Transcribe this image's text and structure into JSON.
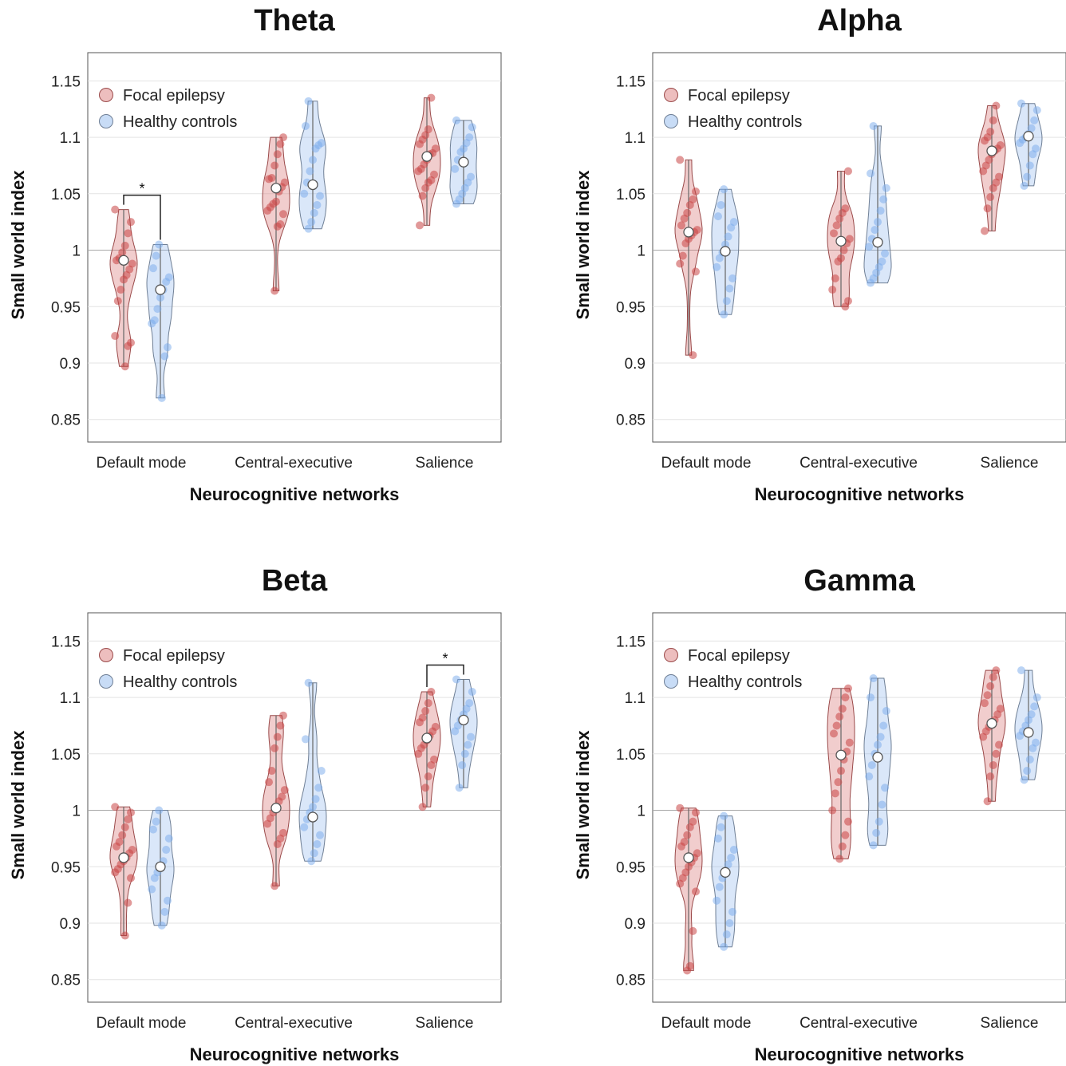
{
  "chart_data": [
    {
      "type": "violin",
      "title": "Theta",
      "xlabel": "Neurocognitive networks",
      "ylabel": "Small world index",
      "ylim": [
        0.83,
        1.175
      ],
      "yticks": [
        "1.15",
        "1.1",
        "1.05",
        "1",
        "0.95",
        "0.9",
        "0.85"
      ],
      "categories": [
        "Default mode",
        "Central-executive",
        "Salience"
      ],
      "legend": {
        "placement": "top-left",
        "entries": [
          "Focal epilepsy",
          "Healthy controls"
        ]
      },
      "series": [
        {
          "name": "Focal epilepsy",
          "color": "#d26a6a",
          "groups": [
            {
              "min": 0.897,
              "max": 1.036,
              "median": 0.991,
              "points": [
                1.036,
                1.025,
                1.015,
                1.004,
                0.998,
                0.993,
                0.991,
                0.988,
                0.983,
                0.978,
                0.974,
                0.965,
                0.955,
                0.924,
                0.918,
                0.915,
                0.897
              ]
            },
            {
              "min": 0.964,
              "max": 1.1,
              "median": 1.055,
              "points": [
                1.1,
                1.094,
                1.085,
                1.075,
                1.064,
                1.063,
                1.06,
                1.056,
                1.052,
                1.043,
                1.041,
                1.038,
                1.035,
                1.032,
                1.023,
                1.021,
                0.964
              ]
            },
            {
              "min": 1.022,
              "max": 1.135,
              "median": 1.083,
              "points": [
                1.135,
                1.107,
                1.102,
                1.098,
                1.094,
                1.09,
                1.086,
                1.085,
                1.08,
                1.076,
                1.072,
                1.07,
                1.067,
                1.062,
                1.06,
                1.055,
                1.048,
                1.022
              ]
            }
          ]
        },
        {
          "name": "Healthy controls",
          "color": "#7fb0ec",
          "groups": [
            {
              "min": 0.869,
              "max": 1.005,
              "median": 0.965,
              "points": [
                1.005,
                0.995,
                0.984,
                0.976,
                0.972,
                0.965,
                0.958,
                0.948,
                0.938,
                0.935,
                0.914,
                0.906,
                0.869
              ]
            },
            {
              "min": 1.019,
              "max": 1.132,
              "median": 1.058,
              "points": [
                1.132,
                1.11,
                1.095,
                1.093,
                1.09,
                1.08,
                1.07,
                1.06,
                1.05,
                1.048,
                1.04,
                1.033,
                1.025,
                1.019
              ]
            },
            {
              "min": 1.041,
              "max": 1.115,
              "median": 1.078,
              "points": [
                1.115,
                1.109,
                1.1,
                1.095,
                1.09,
                1.087,
                1.08,
                1.072,
                1.065,
                1.06,
                1.055,
                1.05,
                1.045,
                1.041
              ]
            }
          ]
        }
      ],
      "significance": [
        {
          "category": "Default mode",
          "label": "*"
        }
      ]
    },
    {
      "type": "violin",
      "title": "Alpha",
      "xlabel": "Neurocognitive networks",
      "ylabel": "Small world index",
      "ylim": [
        0.83,
        1.175
      ],
      "yticks": [
        "1.15",
        "1.1",
        "1.05",
        "1",
        "0.95",
        "0.9",
        "0.85"
      ],
      "categories": [
        "Default mode",
        "Central-executive",
        "Salience"
      ],
      "legend": {
        "placement": "top-left",
        "entries": [
          "Focal epilepsy",
          "Healthy controls"
        ]
      },
      "series": [
        {
          "name": "Focal epilepsy",
          "color": "#d26a6a",
          "groups": [
            {
              "min": 0.907,
              "max": 1.08,
              "median": 1.016,
              "points": [
                1.08,
                1.052,
                1.045,
                1.04,
                1.033,
                1.028,
                1.022,
                1.018,
                1.016,
                1.013,
                1.01,
                1.006,
                0.995,
                0.988,
                0.981,
                0.907
              ]
            },
            {
              "min": 0.95,
              "max": 1.07,
              "median": 1.008,
              "points": [
                1.07,
                1.037,
                1.033,
                1.028,
                1.022,
                1.015,
                1.01,
                1.006,
                1.0,
                0.993,
                0.99,
                0.975,
                0.965,
                0.955,
                0.95
              ]
            },
            {
              "min": 1.017,
              "max": 1.128,
              "median": 1.088,
              "points": [
                1.128,
                1.115,
                1.105,
                1.1,
                1.097,
                1.093,
                1.09,
                1.088,
                1.085,
                1.08,
                1.075,
                1.07,
                1.065,
                1.06,
                1.055,
                1.047,
                1.037,
                1.017
              ]
            }
          ]
        },
        {
          "name": "Healthy controls",
          "color": "#7fb0ec",
          "groups": [
            {
              "min": 0.943,
              "max": 1.054,
              "median": 0.999,
              "points": [
                1.054,
                1.04,
                1.03,
                1.025,
                1.02,
                1.012,
                1.005,
                0.998,
                0.993,
                0.985,
                0.975,
                0.966,
                0.955,
                0.943
              ]
            },
            {
              "min": 0.971,
              "max": 1.11,
              "median": 1.007,
              "points": [
                1.11,
                1.068,
                1.055,
                1.045,
                1.035,
                1.025,
                1.018,
                1.01,
                1.003,
                0.997,
                0.99,
                0.985,
                0.98,
                0.975,
                0.971
              ]
            },
            {
              "min": 1.057,
              "max": 1.13,
              "median": 1.101,
              "points": [
                1.13,
                1.124,
                1.115,
                1.108,
                1.103,
                1.1,
                1.098,
                1.095,
                1.09,
                1.085,
                1.075,
                1.065,
                1.057
              ]
            }
          ]
        }
      ]
    },
    {
      "type": "violin",
      "title": "Beta",
      "xlabel": "Neurocognitive networks",
      "ylabel": "Small world index",
      "ylim": [
        0.83,
        1.175
      ],
      "yticks": [
        "1.15",
        "1.1",
        "1.05",
        "1",
        "0.95",
        "0.9",
        "0.85"
      ],
      "categories": [
        "Default mode",
        "Central-executive",
        "Salience"
      ],
      "legend": {
        "placement": "top-left",
        "entries": [
          "Focal epilepsy",
          "Healthy controls"
        ]
      },
      "series": [
        {
          "name": "Focal epilepsy",
          "color": "#d26a6a",
          "groups": [
            {
              "min": 0.889,
              "max": 1.003,
              "median": 0.958,
              "points": [
                1.003,
                0.998,
                0.992,
                0.985,
                0.978,
                0.972,
                0.968,
                0.965,
                0.962,
                0.958,
                0.955,
                0.952,
                0.948,
                0.945,
                0.94,
                0.918,
                0.889
              ]
            },
            {
              "min": 0.933,
              "max": 1.084,
              "median": 1.002,
              "points": [
                1.084,
                1.075,
                1.065,
                1.055,
                1.035,
                1.025,
                1.018,
                1.012,
                1.008,
                1.002,
                0.998,
                0.993,
                0.988,
                0.98,
                0.975,
                0.97,
                0.933
              ]
            },
            {
              "min": 1.003,
              "max": 1.105,
              "median": 1.064,
              "points": [
                1.105,
                1.095,
                1.088,
                1.082,
                1.078,
                1.074,
                1.07,
                1.066,
                1.062,
                1.058,
                1.055,
                1.05,
                1.045,
                1.04,
                1.03,
                1.02,
                1.003
              ]
            }
          ]
        },
        {
          "name": "Healthy controls",
          "color": "#7fb0ec",
          "groups": [
            {
              "min": 0.898,
              "max": 1.0,
              "median": 0.95,
              "points": [
                1.0,
                0.99,
                0.983,
                0.975,
                0.965,
                0.955,
                0.95,
                0.945,
                0.94,
                0.93,
                0.92,
                0.91,
                0.898
              ]
            },
            {
              "min": 0.955,
              "max": 1.113,
              "median": 0.994,
              "points": [
                1.113,
                1.063,
                1.035,
                1.02,
                1.01,
                1.003,
                0.998,
                0.992,
                0.985,
                0.978,
                0.97,
                0.962,
                0.955
              ]
            },
            {
              "min": 1.02,
              "max": 1.116,
              "median": 1.08,
              "points": [
                1.116,
                1.105,
                1.095,
                1.09,
                1.085,
                1.08,
                1.075,
                1.07,
                1.065,
                1.058,
                1.05,
                1.04,
                1.02
              ]
            }
          ]
        }
      ],
      "significance": [
        {
          "category": "Salience",
          "label": "*"
        }
      ]
    },
    {
      "type": "violin",
      "title": "Gamma",
      "xlabel": "Neurocognitive networks",
      "ylabel": "Small world index",
      "ylim": [
        0.83,
        1.175
      ],
      "yticks": [
        "1.15",
        "1.1",
        "1.05",
        "1",
        "0.95",
        "0.9",
        "0.85"
      ],
      "categories": [
        "Default mode",
        "Central-executive",
        "Salience"
      ],
      "legend": {
        "placement": "top-left",
        "entries": [
          "Focal epilepsy",
          "Healthy controls"
        ]
      },
      "series": [
        {
          "name": "Focal epilepsy",
          "color": "#d26a6a",
          "groups": [
            {
              "min": 0.858,
              "max": 1.002,
              "median": 0.958,
              "points": [
                1.002,
                0.998,
                0.99,
                0.985,
                0.978,
                0.972,
                0.968,
                0.962,
                0.958,
                0.954,
                0.95,
                0.945,
                0.94,
                0.935,
                0.928,
                0.893,
                0.862,
                0.858
              ]
            },
            {
              "min": 0.957,
              "max": 1.108,
              "median": 1.049,
              "points": [
                1.108,
                1.1,
                1.09,
                1.083,
                1.075,
                1.068,
                1.06,
                1.052,
                1.045,
                1.035,
                1.025,
                1.015,
                1.0,
                0.99,
                0.978,
                0.968,
                0.957
              ]
            },
            {
              "min": 1.008,
              "max": 1.124,
              "median": 1.077,
              "points": [
                1.124,
                1.118,
                1.11,
                1.102,
                1.095,
                1.09,
                1.085,
                1.08,
                1.077,
                1.074,
                1.07,
                1.065,
                1.058,
                1.05,
                1.04,
                1.03,
                1.008
              ]
            }
          ]
        },
        {
          "name": "Healthy controls",
          "color": "#7fb0ec",
          "groups": [
            {
              "min": 0.879,
              "max": 0.995,
              "median": 0.945,
              "points": [
                0.995,
                0.985,
                0.975,
                0.965,
                0.958,
                0.952,
                0.945,
                0.94,
                0.932,
                0.92,
                0.91,
                0.9,
                0.89,
                0.879
              ]
            },
            {
              "min": 0.969,
              "max": 1.117,
              "median": 1.047,
              "points": [
                1.117,
                1.1,
                1.088,
                1.075,
                1.065,
                1.058,
                1.05,
                1.04,
                1.03,
                1.02,
                1.005,
                0.99,
                0.98,
                0.969
              ]
            },
            {
              "min": 1.027,
              "max": 1.124,
              "median": 1.069,
              "points": [
                1.124,
                1.1,
                1.092,
                1.085,
                1.08,
                1.075,
                1.07,
                1.066,
                1.06,
                1.055,
                1.045,
                1.035,
                1.027
              ]
            }
          ]
        }
      ]
    }
  ]
}
